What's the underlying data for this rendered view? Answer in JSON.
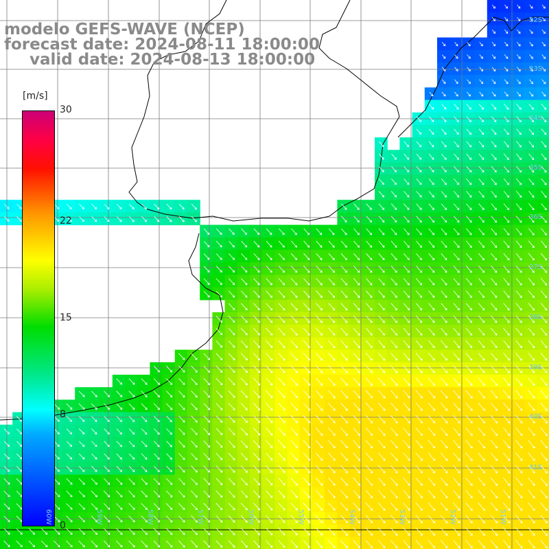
{
  "title": {
    "line1": "modelo GEFS-WAVE (NCEP)",
    "line2": "forecast date: 2024-08-11 18:00:00",
    "line3": "valid date: 2024-08-13 18:00:00"
  },
  "colorbar": {
    "units": "[m/s]",
    "ticks": [
      {
        "label": "30",
        "value": 30
      },
      {
        "label": "22",
        "value": 22
      },
      {
        "label": "15",
        "value": 15
      },
      {
        "label": "8",
        "value": 8
      },
      {
        "label": "0",
        "value": 0
      }
    ],
    "range": [
      0,
      30
    ]
  },
  "grid": {
    "lat_labels": [
      "32S",
      "33S",
      "34S",
      "35S",
      "36S",
      "37S",
      "38S",
      "39S",
      "40S",
      "41S"
    ],
    "lon_labels": [
      "60W",
      "59W",
      "58W",
      "57W",
      "56W",
      "55W",
      "54W",
      "53W",
      "52W",
      "51W"
    ]
  },
  "colors": {
    "land": "#ffffff",
    "coast": "#000000",
    "grid": "#7a7a7a",
    "arrow": "#ffffff",
    "title": "#8a8a8a"
  }
}
